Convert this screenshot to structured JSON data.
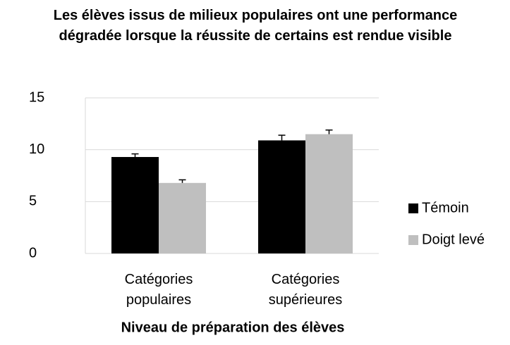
{
  "chart_data": {
    "type": "bar",
    "title": "Les élèves issus de milieux populaires ont une performance dégradée lorsque la réussite de certains est rendue visible",
    "xlabel": "Niveau de préparation des élèves",
    "categories": [
      "Catégories populaires",
      "Catégories supérieures"
    ],
    "series": [
      {
        "name": "Témoin",
        "color": "#000000",
        "values": [
          9.3,
          10.9
        ],
        "errors": [
          0.3,
          0.5
        ]
      },
      {
        "name": "Doigt levé",
        "color": "#bfbfbf",
        "values": [
          6.8,
          11.5
        ],
        "errors": [
          0.3,
          0.4
        ]
      }
    ],
    "ylim": [
      0,
      15
    ],
    "yticks": [
      0,
      5,
      10,
      15
    ],
    "grid": true,
    "legend": "right"
  }
}
